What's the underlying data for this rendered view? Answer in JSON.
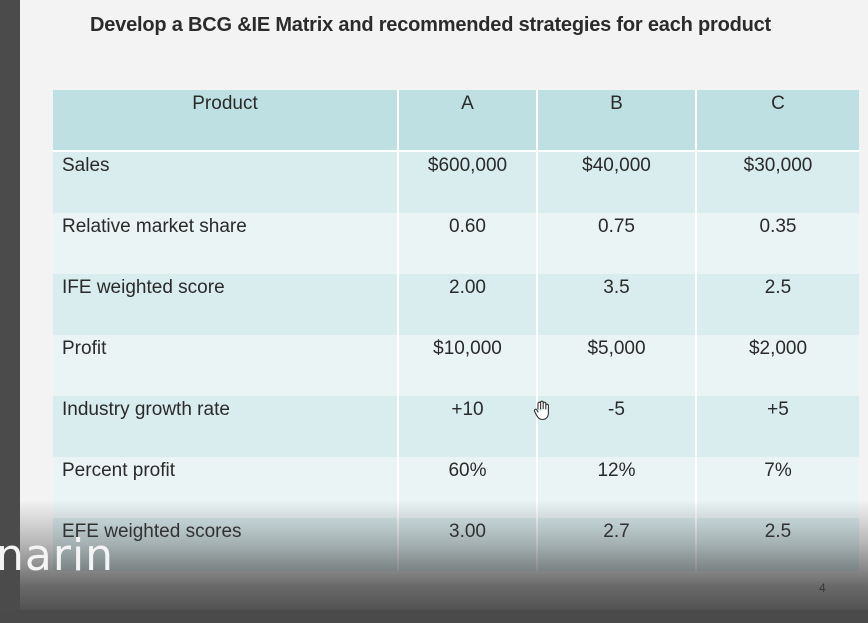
{
  "slide": {
    "title": "Develop a BCG &IE Matrix  and recommended strategies for each product",
    "page_number": "4"
  },
  "table": {
    "headers": [
      "Product",
      "A",
      "B",
      "C"
    ],
    "rows": [
      {
        "label": "Sales",
        "values": [
          "$600,000",
          "$40,000",
          "$30,000"
        ]
      },
      {
        "label": "Relative market share",
        "values": [
          "0.60",
          "0.75",
          "0.35"
        ]
      },
      {
        "label": "IFE weighted score",
        "values": [
          "2.00",
          "3.5",
          "2.5"
        ]
      },
      {
        "label": "Profit",
        "values": [
          "$10,000",
          "$5,000",
          "$2,000"
        ]
      },
      {
        "label": "Industry growth rate",
        "values": [
          "+10",
          "-5",
          "+5"
        ]
      },
      {
        "label": "Percent  profit",
        "values": [
          "60%",
          "12%",
          "7%"
        ]
      },
      {
        "label": "EFE weighted scores",
        "values": [
          "3.00",
          "2.7",
          "2.5"
        ]
      }
    ]
  },
  "overlay": {
    "watermark_text": "narin"
  },
  "cursor": {
    "icon": "hand-pointer-icon"
  },
  "colors": {
    "header_bg": "#bfe0e3",
    "row_dark": "#d9ecee",
    "row_light": "#eaf4f5",
    "slide_bg": "#f3f3f3"
  }
}
